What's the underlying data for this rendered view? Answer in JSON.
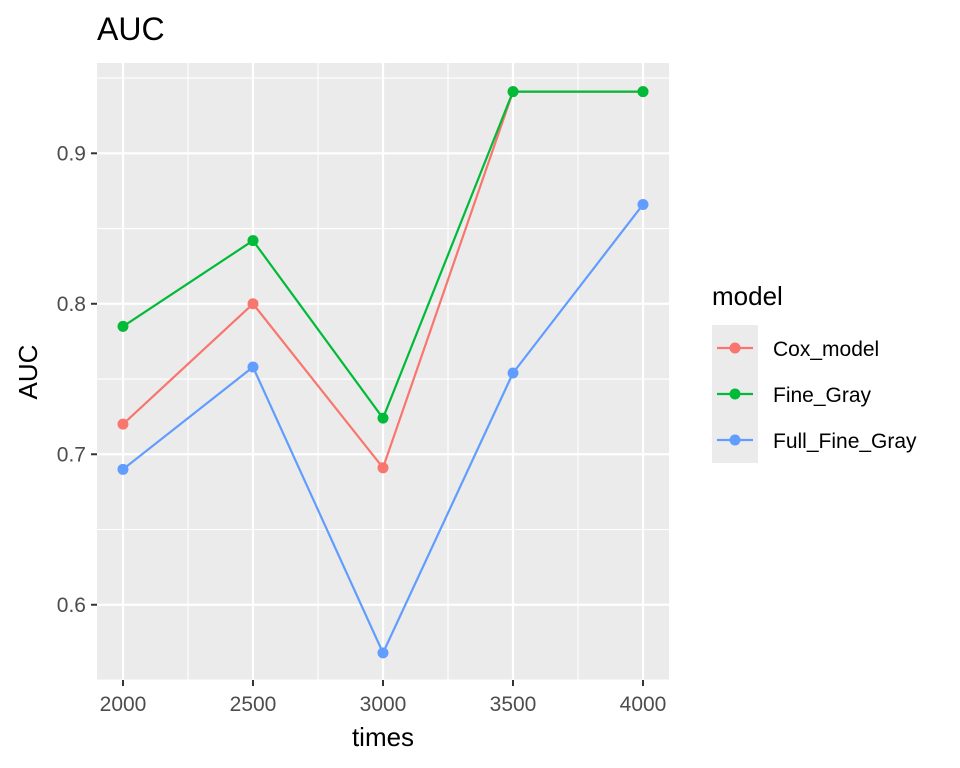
{
  "chart_data": {
    "type": "line",
    "title": "AUC",
    "xlabel": "times",
    "ylabel": "AUC",
    "x": [
      2000,
      2500,
      3000,
      3500,
      4000
    ],
    "xticks": [
      2000,
      2500,
      3000,
      3500,
      4000
    ],
    "yticks": [
      0.6,
      0.7,
      0.8,
      0.9
    ],
    "ytick_labels": [
      "0.6",
      "0.7",
      "0.8",
      "0.9"
    ],
    "xlim": [
      1900,
      4100
    ],
    "ylim": [
      0.55,
      0.96
    ],
    "grid": true,
    "legend": {
      "title": "model",
      "position": "right"
    },
    "series": [
      {
        "name": "Cox_model",
        "color": "#F8766D",
        "values": [
          0.72,
          0.8,
          0.691,
          0.941,
          0.941
        ]
      },
      {
        "name": "Fine_Gray",
        "color": "#00BA38",
        "values": [
          0.785,
          0.842,
          0.724,
          0.941,
          0.941
        ]
      },
      {
        "name": "Full_Fine_Gray",
        "color": "#619CFF",
        "values": [
          0.69,
          0.758,
          0.568,
          0.754,
          0.866
        ]
      }
    ]
  }
}
